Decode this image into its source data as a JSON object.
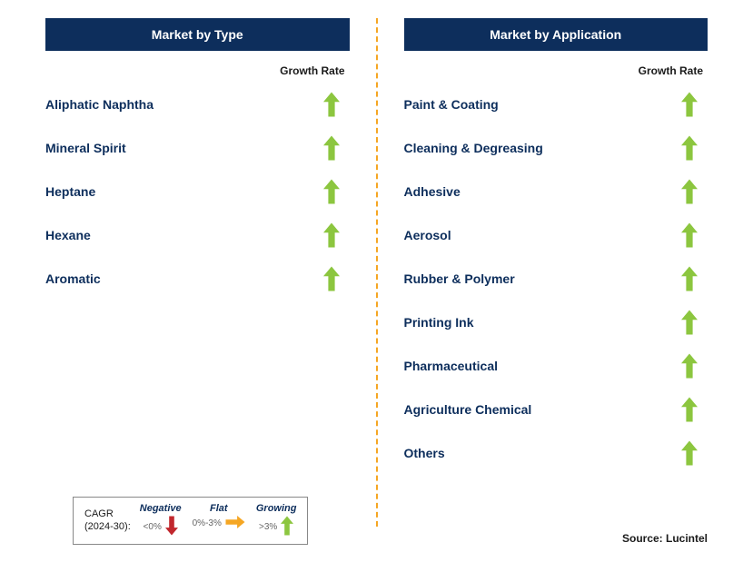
{
  "colors": {
    "header_bg": "#0d2e5c",
    "header_text": "#ffffff",
    "label_text": "#0d2e5c",
    "arrow_growing": "#8cc63f",
    "arrow_negative": "#c1272d",
    "arrow_flat": "#f5a623",
    "divider": "#f5a623",
    "body_text": "#1a1a1a",
    "sub_text": "#666666",
    "legend_border": "#888888"
  },
  "left": {
    "title": "Market by Type",
    "growth_label": "Growth Rate",
    "rows": [
      {
        "label": "Aliphatic Naphtha",
        "trend": "growing"
      },
      {
        "label": "Mineral Spirit",
        "trend": "growing"
      },
      {
        "label": "Heptane",
        "trend": "growing"
      },
      {
        "label": "Hexane",
        "trend": "growing"
      },
      {
        "label": "Aromatic",
        "trend": "growing"
      }
    ]
  },
  "right": {
    "title": "Market by Application",
    "growth_label": "Growth Rate",
    "rows": [
      {
        "label": "Paint & Coating",
        "trend": "growing"
      },
      {
        "label": "Cleaning & Degreasing",
        "trend": "growing"
      },
      {
        "label": "Adhesive",
        "trend": "growing"
      },
      {
        "label": "Aerosol",
        "trend": "growing"
      },
      {
        "label": "Rubber & Polymer",
        "trend": "growing"
      },
      {
        "label": "Printing Ink",
        "trend": "growing"
      },
      {
        "label": "Pharmaceutical",
        "trend": "growing"
      },
      {
        "label": "Agriculture Chemical",
        "trend": "growing"
      },
      {
        "label": "Others",
        "trend": "growing"
      }
    ]
  },
  "legend": {
    "title_line1": "CAGR",
    "title_line2": "(2024-30):",
    "items": [
      {
        "label": "Negative",
        "sub": "<0%",
        "kind": "down"
      },
      {
        "label": "Flat",
        "sub": "0%-3%",
        "kind": "right"
      },
      {
        "label": "Growing",
        "sub": ">3%",
        "kind": "up"
      }
    ]
  },
  "source": "Source: Lucintel"
}
